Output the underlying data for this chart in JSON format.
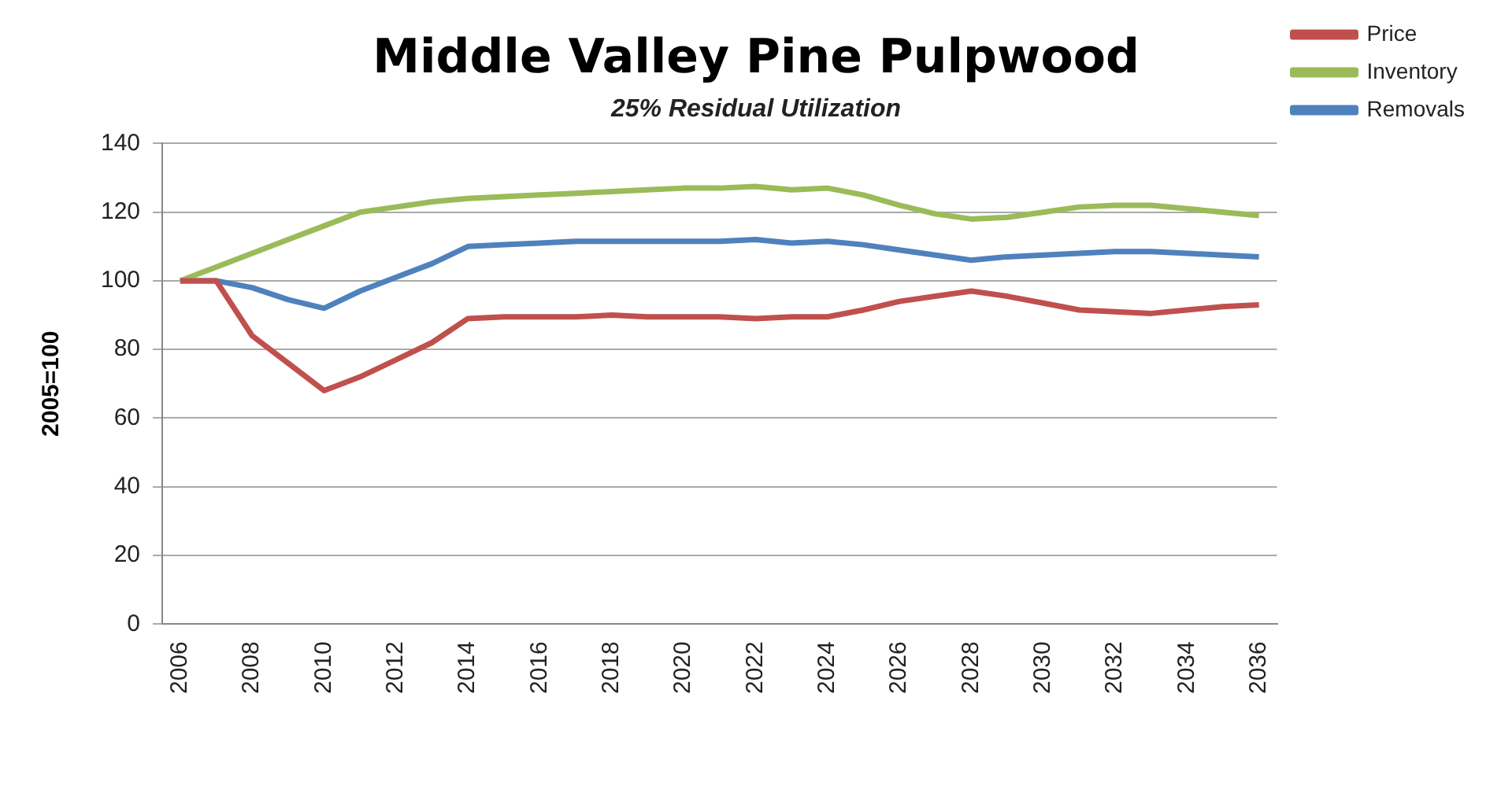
{
  "chart_data": {
    "type": "line",
    "title": "Middle Valley Pine Pulpwood",
    "subtitle": "25% Residual Utilization",
    "ylabel": "2005=100",
    "x": [
      2006,
      2007,
      2008,
      2009,
      2010,
      2011,
      2012,
      2013,
      2014,
      2015,
      2016,
      2017,
      2018,
      2019,
      2020,
      2021,
      2022,
      2023,
      2024,
      2025,
      2026,
      2027,
      2028,
      2029,
      2030,
      2031,
      2032,
      2033,
      2034,
      2035,
      2036
    ],
    "series": [
      {
        "name": "Price",
        "color": "#c0504d",
        "values": [
          100,
          100,
          84,
          76,
          68,
          72,
          77,
          82,
          89,
          89.5,
          89.5,
          89.5,
          90,
          89.5,
          89.5,
          89.5,
          89,
          89.5,
          89.5,
          91.5,
          94,
          95.5,
          97,
          95.5,
          93.5,
          91.5,
          91,
          90.5,
          91.5,
          92.5,
          93
        ]
      },
      {
        "name": "Inventory",
        "color": "#9bbb59",
        "values": [
          100,
          104,
          108,
          112,
          116,
          120,
          121.5,
          123,
          124,
          124.5,
          125,
          125.5,
          126,
          126.5,
          127,
          127,
          127.5,
          126.5,
          127,
          125,
          122,
          119.5,
          118,
          118.5,
          120,
          121.5,
          122,
          122,
          121,
          120,
          119
        ]
      },
      {
        "name": "Removals",
        "color": "#4f81bd",
        "values": [
          100,
          100,
          98,
          94.5,
          92,
          97,
          101,
          105,
          110,
          110.5,
          111,
          111.5,
          111.5,
          111.5,
          111.5,
          111.5,
          112,
          111,
          111.5,
          110.5,
          109,
          107.5,
          106,
          107,
          107.5,
          108,
          108.5,
          108.5,
          108,
          107.5,
          107
        ]
      }
    ],
    "xlim": [
      2005.5,
      2036.5
    ],
    "xticks": [
      2006,
      2008,
      2010,
      2012,
      2014,
      2016,
      2018,
      2020,
      2022,
      2024,
      2026,
      2028,
      2030,
      2032,
      2034,
      2036
    ],
    "ylim": [
      0,
      140
    ],
    "yticks": [
      0,
      20,
      40,
      60,
      80,
      100,
      120,
      140
    ],
    "grid": "y",
    "legend": "top right",
    "marker": "none",
    "line_style": "solid"
  }
}
